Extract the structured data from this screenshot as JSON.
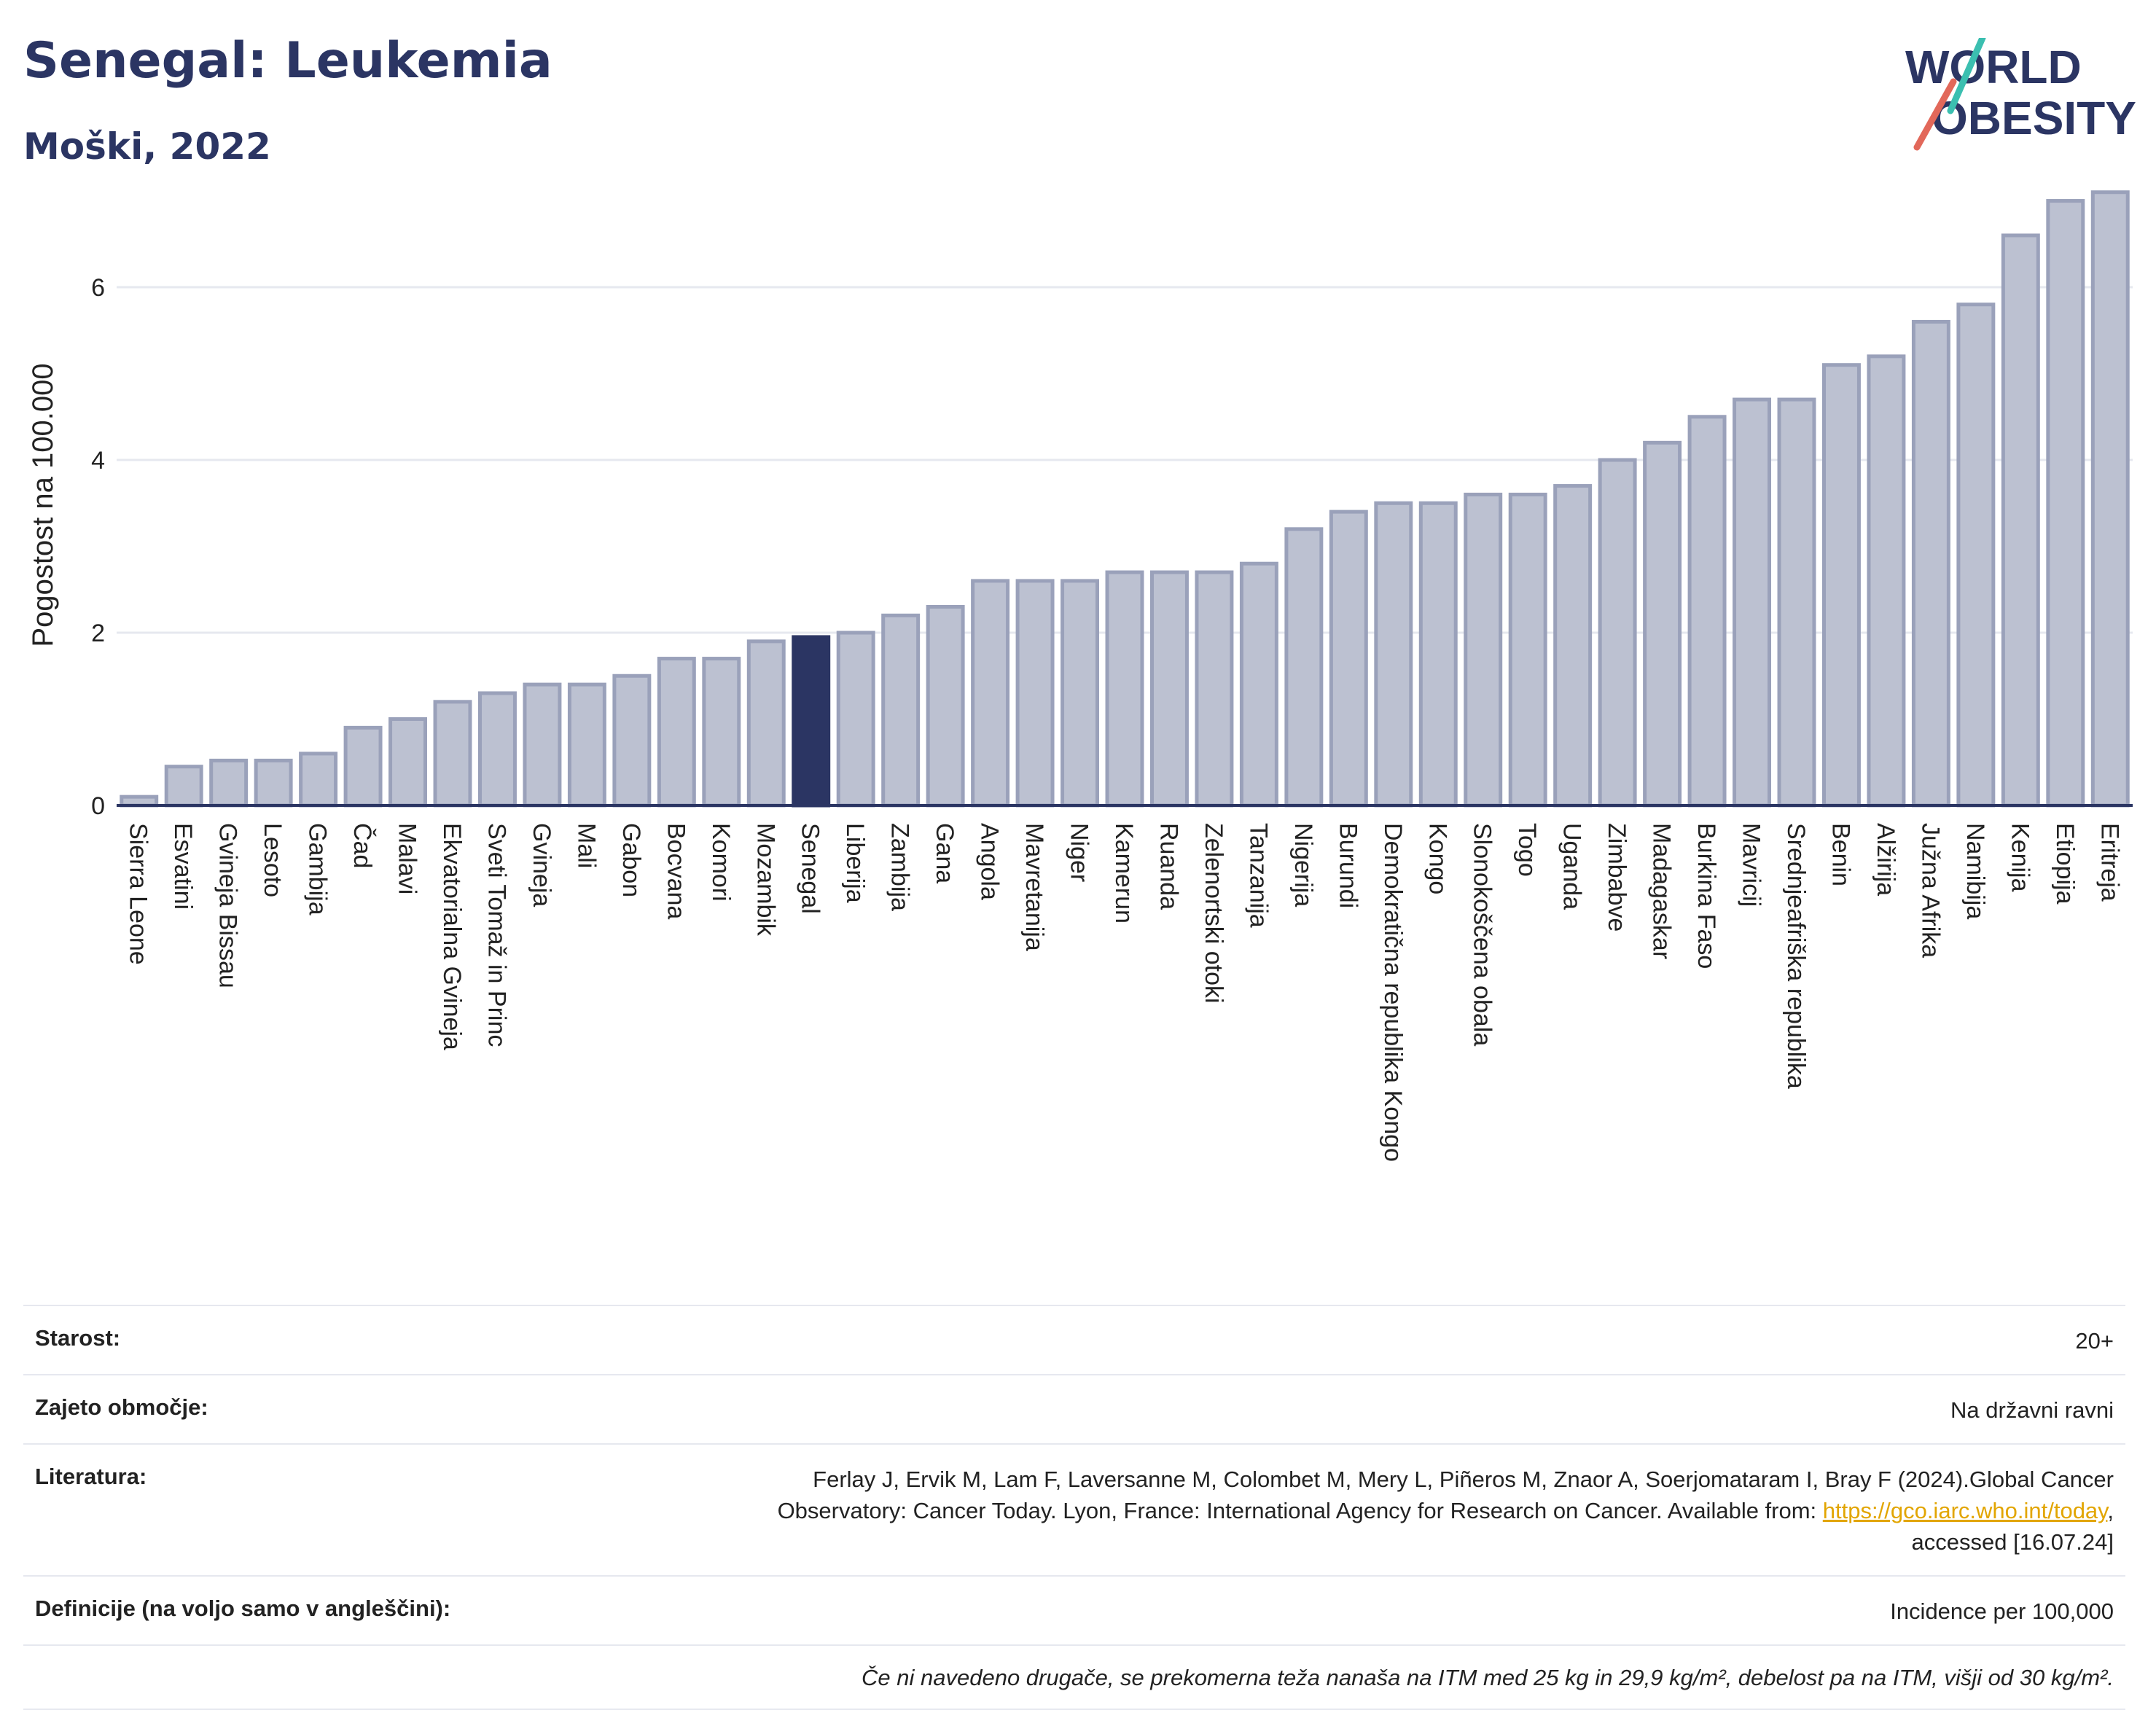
{
  "header": {
    "title": "Senegal: Leukemia",
    "subtitle": "Moški, 2022",
    "logo_line1": "WORLD",
    "logo_line2": "OBESITY"
  },
  "colors": {
    "bar": "#bcc1d1",
    "bar_border": "#9aa1ba",
    "highlight": "#2b3563",
    "grid": "#e6e8ef",
    "logo_text": "#2b3563",
    "logo_slash_teal": "#3bbfb0",
    "logo_slash_red": "#e2685a"
  },
  "chart_data": {
    "type": "bar",
    "title": "",
    "ylabel": "Pogostost na 100.000",
    "xlabel": "",
    "ylim": [
      0,
      7.3
    ],
    "yticks": [
      0,
      2,
      4,
      6
    ],
    "grid": true,
    "highlight": "Senegal",
    "categories": [
      "Sierra Leone",
      "Esvatini",
      "Gvineja Bissau",
      "Lesoto",
      "Gambija",
      "Čad",
      "Malavi",
      "Ekvatorialna Gvineja",
      "Sveti Tomaž in Princ",
      "Gvineja",
      "Mali",
      "Gabon",
      "Bocvana",
      "Komori",
      "Mozambik",
      "Senegal",
      "Liberija",
      "Zambija",
      "Gana",
      "Angola",
      "Mavretanija",
      "Niger",
      "Kamerun",
      "Ruanda",
      "Zelenortski otoki",
      "Tanzanija",
      "Nigerija",
      "Burundi",
      "Demokratična republika Kongo",
      "Kongo",
      "Slonokoščena obala",
      "Togo",
      "Uganda",
      "Zimbabve",
      "Madagaskar",
      "Burkina Faso",
      "Mavricij",
      "Srednjeafriška republika",
      "Benin",
      "Alžirija",
      "Južna Afrika",
      "Namibija",
      "Kenija",
      "Etiopija",
      "Eritreja"
    ],
    "values": [
      0.1,
      0.45,
      0.52,
      0.52,
      0.6,
      0.9,
      1.0,
      1.2,
      1.3,
      1.4,
      1.4,
      1.5,
      1.7,
      1.7,
      1.9,
      1.95,
      2.0,
      2.2,
      2.3,
      2.6,
      2.6,
      2.6,
      2.7,
      2.7,
      2.7,
      2.8,
      3.2,
      3.4,
      3.5,
      3.5,
      3.6,
      3.6,
      3.7,
      4.0,
      4.2,
      4.5,
      4.7,
      4.7,
      5.1,
      5.2,
      5.6,
      5.8,
      6.6,
      7.0,
      7.1
    ]
  },
  "info": {
    "age_label": "Starost:",
    "age_value": "20+",
    "coverage_label": "Zajeto območje:",
    "coverage_value": "Na državni ravni",
    "literature_label": "Literatura:",
    "literature_line1": "Ferlay J, Ervik M, Lam F, Laversanne M, Colombet M, Mery L, Piñeros M, Znaor A, Soerjomataram I, Bray F (2024).Global Cancer",
    "literature_line2_prefix": "Observatory: Cancer Today. Lyon, France: International Agency for Research on Cancer. Available from: ",
    "literature_link": "https://gco.iarc.who.int/today",
    "literature_line2_suffix": ",",
    "literature_line3": "accessed [16.07.24]",
    "definitions_label": "Definicije (na voljo samo v angleščini):",
    "definitions_value": "Incidence per 100,000",
    "note": "Če ni navedeno drugače, se prekomerna teža nanaša na ITM med 25 kg in 29,9 kg/m², debelost pa na ITM, višji od 30 kg/m²."
  }
}
